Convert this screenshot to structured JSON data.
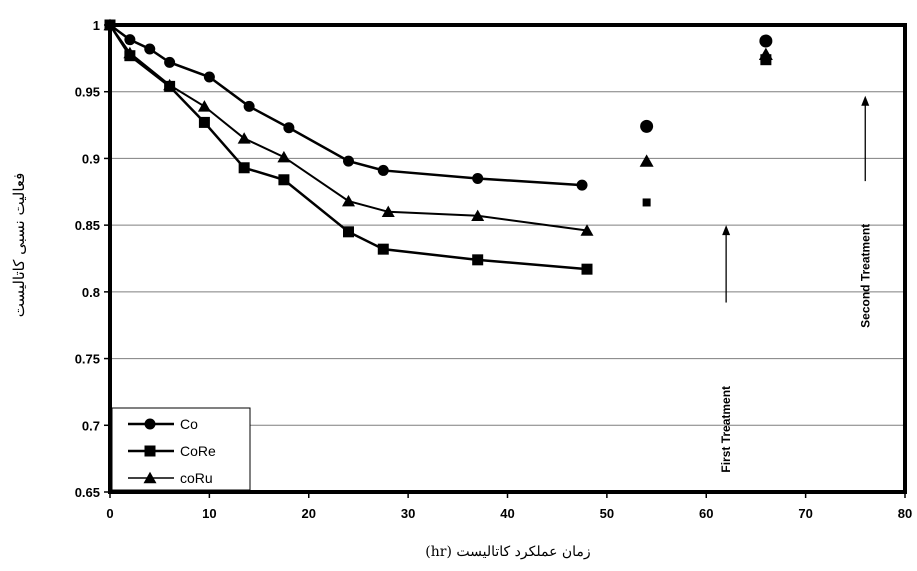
{
  "chart_data": {
    "type": "line",
    "xlabel": "زمان عملکرد کاتالیست (hr)",
    "ylabel": "فعالیت نسبی کاتالیست",
    "xlim": [
      0,
      80
    ],
    "ylim": [
      0.65,
      1
    ],
    "xticks": [
      "0",
      "10",
      "20",
      "30",
      "40",
      "50",
      "60",
      "70",
      "80"
    ],
    "yticks": [
      "0.65",
      "0.7",
      "0.75",
      "0.8",
      "0.85",
      "0.9",
      "0.95",
      "1"
    ],
    "grid": "horizontal",
    "legend_position": "bottom-left",
    "series": [
      {
        "name": "Co",
        "marker": "circle",
        "line": [
          [
            0,
            1.0
          ],
          [
            2,
            0.989
          ],
          [
            4,
            0.982
          ],
          [
            6,
            0.972
          ],
          [
            10,
            0.961
          ],
          [
            14,
            0.939
          ],
          [
            18,
            0.923
          ],
          [
            24,
            0.898
          ],
          [
            27.5,
            0.891
          ],
          [
            37,
            0.885
          ],
          [
            47.5,
            0.88
          ]
        ],
        "extra_points": [
          [
            54,
            0.924
          ],
          [
            66,
            0.988
          ]
        ]
      },
      {
        "name": "CoRe",
        "marker": "square",
        "line": [
          [
            0,
            1.0
          ],
          [
            2,
            0.977
          ],
          [
            6,
            0.954
          ],
          [
            9.5,
            0.927
          ],
          [
            13.5,
            0.893
          ],
          [
            17.5,
            0.884
          ],
          [
            24,
            0.845
          ],
          [
            27.5,
            0.832
          ],
          [
            37,
            0.824
          ],
          [
            48,
            0.817
          ]
        ],
        "extra_points": [
          [
            54,
            0.867
          ],
          [
            66,
            0.974
          ]
        ]
      },
      {
        "name": "coRu",
        "marker": "triangle",
        "line": [
          [
            0,
            1.0
          ],
          [
            2,
            0.979
          ],
          [
            6,
            0.955
          ],
          [
            9.5,
            0.939
          ],
          [
            13.5,
            0.915
          ],
          [
            17.5,
            0.901
          ],
          [
            24,
            0.868
          ],
          [
            28,
            0.86
          ],
          [
            37,
            0.857
          ],
          [
            48,
            0.846
          ]
        ],
        "extra_points": [
          [
            54,
            0.898
          ],
          [
            66,
            0.978
          ]
        ]
      }
    ],
    "annotations": [
      {
        "text": "First Treatment",
        "x": 62,
        "y_start": 0.85
      },
      {
        "text": "Second Treatment",
        "x": 76,
        "y_start": 0.947
      }
    ]
  }
}
